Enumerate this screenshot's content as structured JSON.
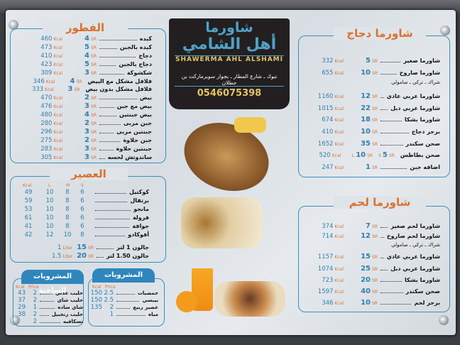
{
  "logo": {
    "line1": "شاورما",
    "line2": "أهل الشامي",
    "latin": "SHAWERMA AHL ALSHAMI",
    "address": "تبوك ـ شارع المطار ـ بجوار سوبرماركت بن جطلان",
    "phone": "0546075398"
  },
  "units": {
    "currency": "SR",
    "kcal": "Kcal",
    "liter": "Liter",
    "price": "Price"
  },
  "breakfast": {
    "title": "الفطور",
    "items": [
      {
        "name": "كبده",
        "price": "4",
        "kcal": "460"
      },
      {
        "name": "كبده بالجبن",
        "price": "5",
        "kcal": "473"
      },
      {
        "name": "دجاج",
        "price": "4",
        "kcal": "410"
      },
      {
        "name": "دجاج بالجبن",
        "price": "5",
        "kcal": "423"
      },
      {
        "name": "شكشوكة",
        "price": "3",
        "kcal": "309"
      },
      {
        "name": "فلافل مشكل مع البيض",
        "price": "4",
        "kcal": "346"
      },
      {
        "name": "فلافل مشكل بدون بيض",
        "price": "3",
        "kcal": "333"
      },
      {
        "name": "بيض",
        "price": "2",
        "kcal": "470"
      },
      {
        "name": "بيض مع جبن",
        "price": "3",
        "kcal": "476"
      },
      {
        "name": "بيض جبنتين",
        "price": "4",
        "kcal": "480"
      },
      {
        "name": "جبن مربى",
        "price": "2",
        "kcal": "280"
      },
      {
        "name": "جبنتين مربى",
        "price": "3",
        "kcal": "296"
      },
      {
        "name": "جبن حلاوة",
        "price": "2",
        "kcal": "275"
      },
      {
        "name": "جبنتين حلاوة",
        "price": "3",
        "kcal": "283"
      },
      {
        "name": "ساندوتش لحسه",
        "price": "3",
        "kcal": "305"
      }
    ]
  },
  "juice": {
    "title": "العصير",
    "headers": {
      "kcal": "Kcal",
      "l": "L",
      "m": "M",
      "s": "S"
    },
    "items": [
      {
        "name": "كوكتيل",
        "s": "6",
        "m": "8",
        "l": "10",
        "kcal": "49"
      },
      {
        "name": "برتقال",
        "s": "6",
        "m": "8",
        "l": "10",
        "kcal": "59"
      },
      {
        "name": "مانجو",
        "s": "6",
        "m": "8",
        "l": "10",
        "kcal": "53"
      },
      {
        "name": "فرولة",
        "s": "6",
        "m": "8",
        "l": "10",
        "kcal": "61"
      },
      {
        "name": "جوافة",
        "s": "6",
        "m": "8",
        "l": "10",
        "kcal": "41"
      },
      {
        "name": "أفوكادو",
        "s": "8",
        "m": "10",
        "l": "12",
        "kcal": "42"
      }
    ],
    "gallons": [
      {
        "name": "جالون 1 لتر",
        "price": "15",
        "size": "1"
      },
      {
        "name": "جالون 1.50 لتر",
        "price": "20",
        "size": "1.5"
      }
    ]
  },
  "hot_drinks": {
    "title": "المشروبات الساخنة",
    "items": [
      {
        "name": "حليب عدني",
        "price": "2",
        "kcal": "43"
      },
      {
        "name": "حليب شاي",
        "price": "2",
        "kcal": "37"
      },
      {
        "name": "شاي ساده",
        "price": "1",
        "kcal": "29"
      },
      {
        "name": "حليب زنجبيل",
        "price": "2",
        "kcal": "38"
      },
      {
        "name": "نسكافيه",
        "price": "2",
        "kcal": ""
      }
    ]
  },
  "drinks": {
    "title": "المشروبات",
    "items": [
      {
        "name": "حمضيات",
        "price": "2.5",
        "kcal": "150"
      },
      {
        "name": "بيبسي",
        "price": "2.5",
        "kcal": "150"
      },
      {
        "name": "عصير ربيع",
        "price": "2",
        "kcal": "135"
      },
      {
        "name": "مياه",
        "price": "1",
        "kcal": ""
      }
    ]
  },
  "chicken": {
    "title": "شاورما دجاج",
    "note": "شراك ـ تركي ـ صامولي",
    "items": [
      {
        "name": "شاورما صغير",
        "price": "5",
        "kcal": "332"
      },
      {
        "name": "شاورما صاروخ",
        "price": "10",
        "kcal": "655"
      },
      {
        "name": "شاورما عربي عادي",
        "price": "12",
        "kcal": "1160"
      },
      {
        "name": "شاورما عربي دبل",
        "price": "22",
        "kcal": "1015"
      },
      {
        "name": "شاورما بشكا",
        "price": "18",
        "kcal": "674"
      },
      {
        "name": "برجر دجاج",
        "price": "10",
        "kcal": "410"
      },
      {
        "name": "صحن سكندر",
        "price": "35",
        "kcal": "1652"
      },
      {
        "name": "صحن بطاطس",
        "price": "10",
        "size": "L",
        "small_price": "5",
        "small_size": "S",
        "kcal": "520"
      },
      {
        "name": "اضافه جبن",
        "price": "1",
        "kcal": "247"
      }
    ]
  },
  "meat": {
    "title": "شاورما لحم",
    "note": "شراك ـ تركي ـ صامولي",
    "items": [
      {
        "name": "شاورما لحم صغير",
        "price": "7",
        "kcal": "374"
      },
      {
        "name": "شاورما لحم صاروخ",
        "price": "12",
        "kcal": "714"
      },
      {
        "name": "شاورما عربي عادي",
        "price": "15",
        "kcal": "1157"
      },
      {
        "name": "شاورما عربي دبل",
        "price": "25",
        "kcal": "1074"
      },
      {
        "name": "شاورما بشكا",
        "price": "20",
        "kcal": "723"
      },
      {
        "name": "صحن سكندر",
        "price": "40",
        "kcal": "1597"
      },
      {
        "name": "برجر لحم",
        "price": "10",
        "kcal": "346"
      }
    ]
  },
  "colors": {
    "accent_orange": "#d9712f",
    "accent_blue": "#2f86bd",
    "logo_bg": "#231f20",
    "logo_gold": "#e3c463"
  }
}
